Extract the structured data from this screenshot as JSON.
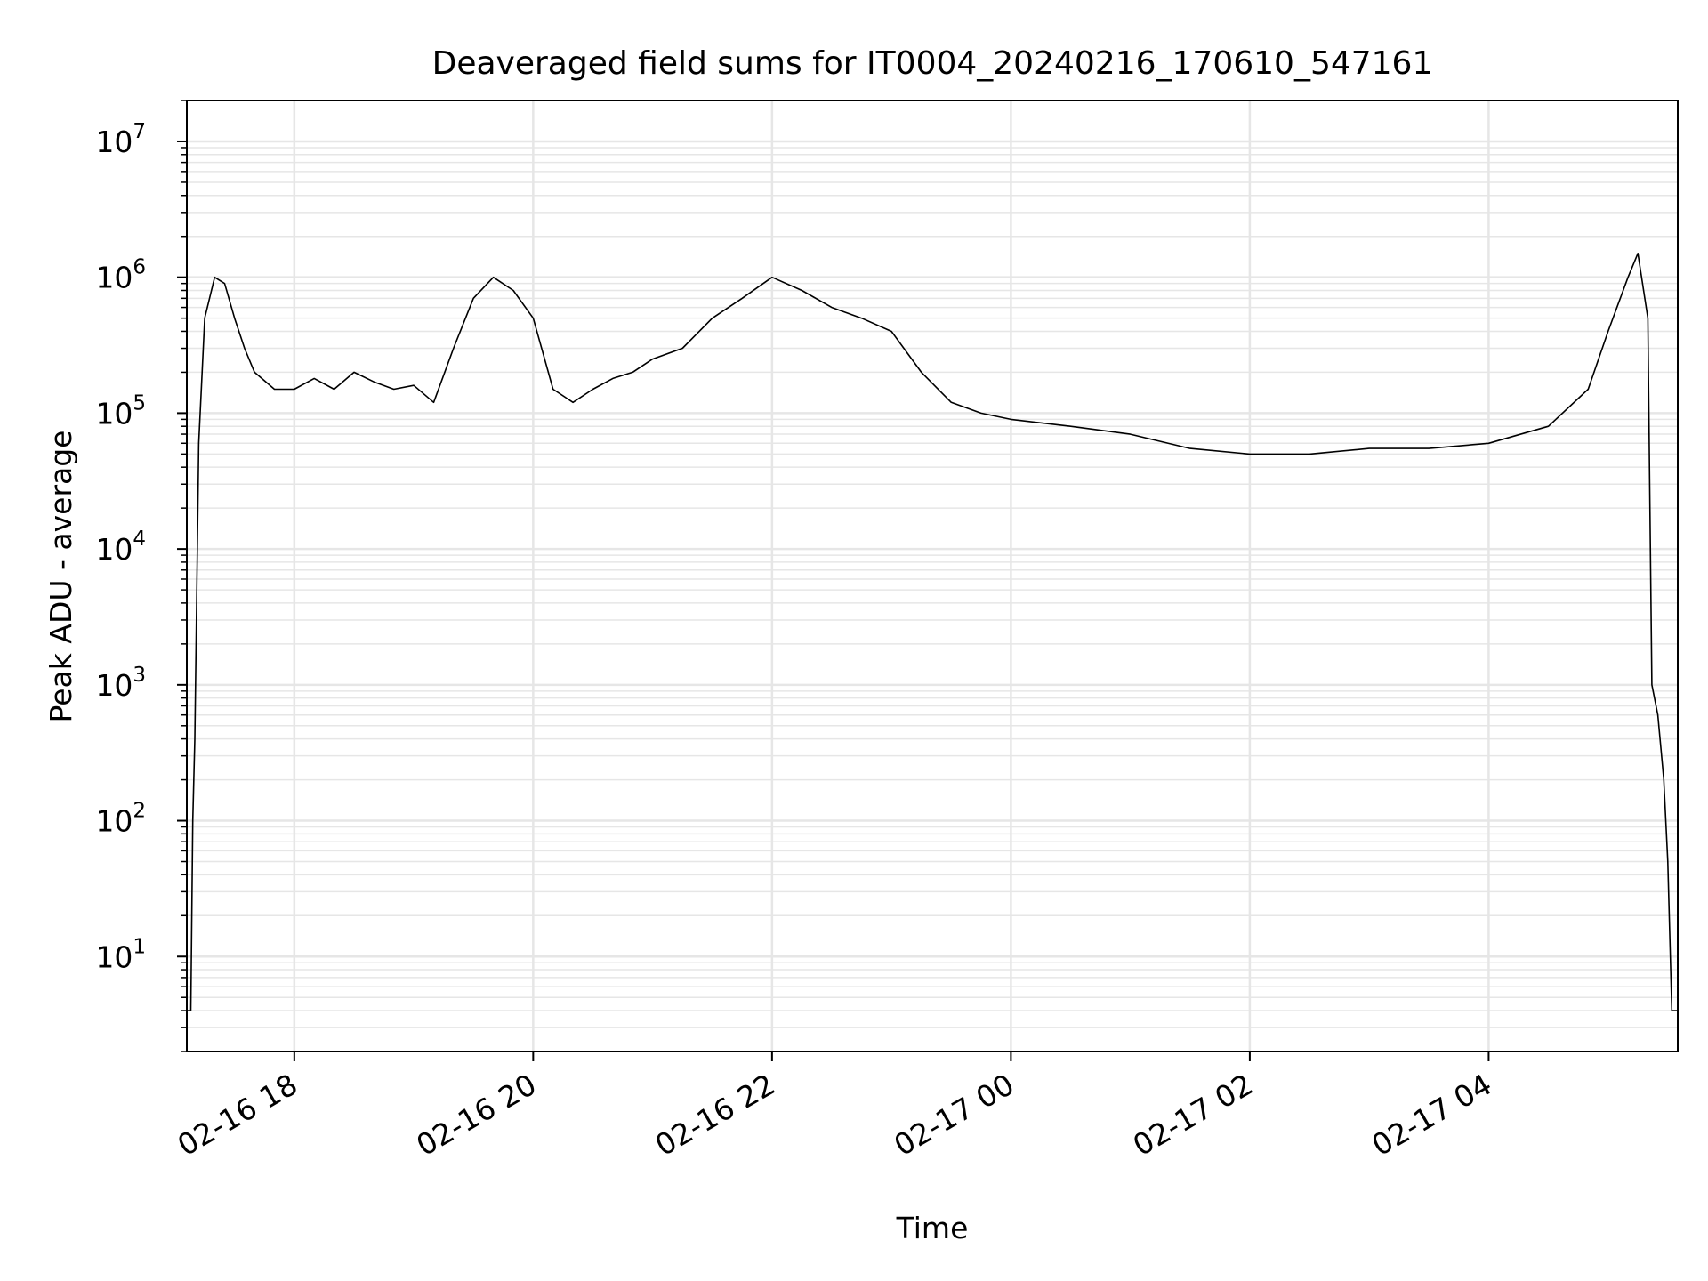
{
  "chart_data": {
    "type": "line",
    "title": "Deaveraged field sums for IT0004_20240216_170610_547161",
    "xlabel": "Time",
    "ylabel": "Peak ADU - average",
    "yscale": "log",
    "ylim": [
      2,
      20000000
    ],
    "xlim": [
      "2024-02-16 17:06",
      "2024-02-17 05:35"
    ],
    "grid": true,
    "line_color": "#000000",
    "grid_color": "#e6e6e6",
    "x_ticks": [
      {
        "label": "02-16 18",
        "t": "2024-02-16 18:00"
      },
      {
        "label": "02-16 20",
        "t": "2024-02-16 20:00"
      },
      {
        "label": "02-16 22",
        "t": "2024-02-16 22:00"
      },
      {
        "label": "02-17 00",
        "t": "2024-02-17 00:00"
      },
      {
        "label": "02-17 02",
        "t": "2024-02-17 02:00"
      },
      {
        "label": "02-17 04",
        "t": "2024-02-17 04:00"
      }
    ],
    "y_ticks": [
      {
        "base": "10",
        "exp": "1",
        "value": 10
      },
      {
        "base": "10",
        "exp": "2",
        "value": 100
      },
      {
        "base": "10",
        "exp": "3",
        "value": 1000
      },
      {
        "base": "10",
        "exp": "4",
        "value": 10000
      },
      {
        "base": "10",
        "exp": "5",
        "value": 100000
      },
      {
        "base": "10",
        "exp": "6",
        "value": 1000000
      },
      {
        "base": "10",
        "exp": "7",
        "value": 10000000
      }
    ],
    "series": [
      {
        "points": [
          [
            "2024-02-16 17:06",
            4
          ],
          [
            "2024-02-16 17:08",
            4
          ],
          [
            "2024-02-16 17:09",
            100
          ],
          [
            "2024-02-16 17:10",
            400
          ],
          [
            "2024-02-16 17:12",
            60000
          ],
          [
            "2024-02-16 17:15",
            500000
          ],
          [
            "2024-02-16 17:20",
            1000000
          ],
          [
            "2024-02-16 17:25",
            900000
          ],
          [
            "2024-02-16 17:30",
            500000
          ],
          [
            "2024-02-16 17:35",
            300000
          ],
          [
            "2024-02-16 17:40",
            200000
          ],
          [
            "2024-02-16 17:50",
            150000
          ],
          [
            "2024-02-16 18:00",
            150000
          ],
          [
            "2024-02-16 18:10",
            180000
          ],
          [
            "2024-02-16 18:20",
            150000
          ],
          [
            "2024-02-16 18:30",
            200000
          ],
          [
            "2024-02-16 18:40",
            170000
          ],
          [
            "2024-02-16 18:50",
            150000
          ],
          [
            "2024-02-16 19:00",
            160000
          ],
          [
            "2024-02-16 19:10",
            120000
          ],
          [
            "2024-02-16 19:20",
            300000
          ],
          [
            "2024-02-16 19:30",
            700000
          ],
          [
            "2024-02-16 19:40",
            1000000
          ],
          [
            "2024-02-16 19:50",
            800000
          ],
          [
            "2024-02-16 20:00",
            500000
          ],
          [
            "2024-02-16 20:10",
            150000
          ],
          [
            "2024-02-16 20:20",
            120000
          ],
          [
            "2024-02-16 20:30",
            150000
          ],
          [
            "2024-02-16 20:40",
            180000
          ],
          [
            "2024-02-16 20:50",
            200000
          ],
          [
            "2024-02-16 21:00",
            250000
          ],
          [
            "2024-02-16 21:15",
            300000
          ],
          [
            "2024-02-16 21:30",
            500000
          ],
          [
            "2024-02-16 21:45",
            700000
          ],
          [
            "2024-02-16 22:00",
            1000000
          ],
          [
            "2024-02-16 22:15",
            800000
          ],
          [
            "2024-02-16 22:30",
            600000
          ],
          [
            "2024-02-16 22:45",
            500000
          ],
          [
            "2024-02-16 23:00",
            400000
          ],
          [
            "2024-02-16 23:15",
            200000
          ],
          [
            "2024-02-16 23:30",
            120000
          ],
          [
            "2024-02-16 23:45",
            100000
          ],
          [
            "2024-02-17 00:00",
            90000
          ],
          [
            "2024-02-17 00:30",
            80000
          ],
          [
            "2024-02-17 01:00",
            70000
          ],
          [
            "2024-02-17 01:30",
            55000
          ],
          [
            "2024-02-17 02:00",
            50000
          ],
          [
            "2024-02-17 02:30",
            50000
          ],
          [
            "2024-02-17 03:00",
            55000
          ],
          [
            "2024-02-17 03:30",
            55000
          ],
          [
            "2024-02-17 04:00",
            60000
          ],
          [
            "2024-02-17 04:30",
            80000
          ],
          [
            "2024-02-17 04:50",
            150000
          ],
          [
            "2024-02-17 05:00",
            400000
          ],
          [
            "2024-02-17 05:10",
            1000000
          ],
          [
            "2024-02-17 05:15",
            1500000
          ],
          [
            "2024-02-17 05:20",
            500000
          ],
          [
            "2024-02-17 05:22",
            1000
          ],
          [
            "2024-02-17 05:25",
            600
          ],
          [
            "2024-02-17 05:28",
            200
          ],
          [
            "2024-02-17 05:30",
            50
          ],
          [
            "2024-02-17 05:32",
            4
          ],
          [
            "2024-02-17 05:35",
            4
          ]
        ]
      }
    ]
  }
}
